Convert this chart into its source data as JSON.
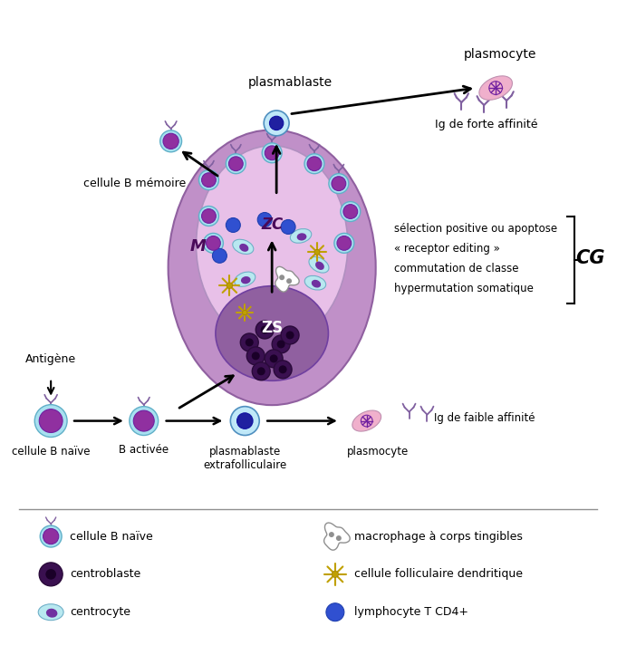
{
  "fig_width": 6.81,
  "fig_height": 7.23,
  "bg_color": "#ffffff",
  "colors": {
    "manteau": "#c090c8",
    "zone_claire": "#e8c8e8",
    "zone_sombre": "#9060a0",
    "cell_purple": "#9030a0",
    "cell_blue_outline": "#80d0e0",
    "lympho_blue": "#3050c0",
    "Y_color": "#8060a0",
    "star_color": "#c0a000",
    "centroblaste_dark": "#3a1040"
  },
  "labels": {
    "plasmocyte_top": "plasmocyte",
    "plasmablaste_top": "plasmablaste",
    "cellule_B_memoire": "cellule B mémoire",
    "Ig_forte": "Ig de forte affinité",
    "M_label": "M",
    "ZC_label": "ZC",
    "ZS_label": "ZS",
    "selection": "sélection positive ou apoptose",
    "receptor": "« receptor editing »",
    "commutation": "commutation de classe",
    "hypermutation": "hypermutation somatique",
    "CG": "CG",
    "antigene": "Antigène",
    "cellule_B_naive_bottom": "cellule B naïve",
    "B_activee": "B activée",
    "plasmablaste_extra": "plasmablaste\nextrafolliculaire",
    "plasmocyte_bottom": "plasmocyte",
    "Ig_faible": "Ig de faible affinité",
    "legend_naive": "cellule B naïve",
    "legend_centroblaste": "centroblaste",
    "legend_centrocyte": "centrocyte",
    "legend_macro": "macrophage à corps tingibles",
    "legend_dendritique": "cellule folliculaire dendritique",
    "legend_lympho": "lymphocyte T CD4+"
  }
}
